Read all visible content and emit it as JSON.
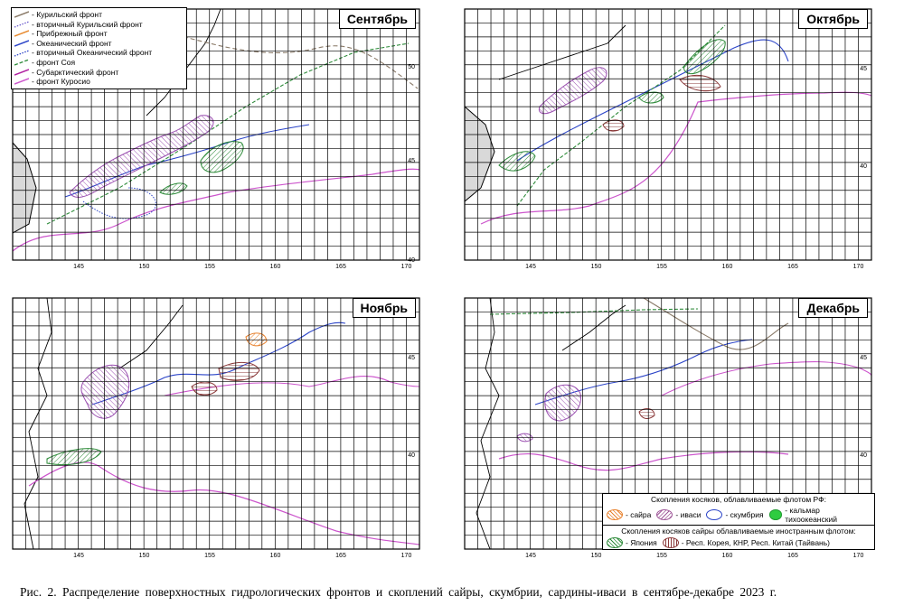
{
  "panels": [
    {
      "month": "Сентябрь",
      "lon_ticks": [
        "145",
        "150",
        "155",
        "160",
        "165",
        "170"
      ],
      "lat_ticks": [
        "50",
        "45",
        "40"
      ]
    },
    {
      "month": "Октябрь",
      "lon_ticks": [
        "145",
        "150",
        "155",
        "160",
        "165",
        "170"
      ],
      "lat_ticks": [
        "45",
        "40"
      ]
    },
    {
      "month": "Ноябрь",
      "lon_ticks": [
        "145",
        "150",
        "155",
        "160",
        "165",
        "170"
      ],
      "lat_ticks": [
        "45",
        "40"
      ]
    },
    {
      "month": "Декабрь",
      "lon_ticks": [
        "145",
        "150",
        "155",
        "160",
        "165",
        "170"
      ],
      "lat_ticks": [
        "45",
        "40"
      ]
    }
  ],
  "fronts_legend": [
    {
      "label": "- Курильский фронт",
      "color": "#8a7a68",
      "style": "solid"
    },
    {
      "label": "- вторичный Курильский фронт",
      "color": "#6a5acd",
      "style": "dotted"
    },
    {
      "label": "- Прибрежный фронт",
      "color": "#e88a2e",
      "style": "solid"
    },
    {
      "label": "- Океанический фронт",
      "color": "#2b44c8",
      "style": "solid"
    },
    {
      "label": "- вторичный Океанический фронт",
      "color": "#2b44c8",
      "style": "dotted"
    },
    {
      "label": "- фронт Соя",
      "color": "#2e8b3a",
      "style": "dashed"
    },
    {
      "label": "- Субарктический фронт",
      "color": "#b020a0",
      "style": "solid"
    },
    {
      "label": "- фронт Куросио",
      "color": "#cc55cc",
      "style": "solid"
    }
  ],
  "schools_legend": {
    "rf_title": "Скопления косяков, облавливаемые флотом РФ:",
    "rf_items": [
      {
        "label": "- сайра",
        "color": "#e8822e"
      },
      {
        "label": "- иваси",
        "color": "#a05a9a"
      },
      {
        "label": "- скумбрия",
        "color": "#2b44c8"
      },
      {
        "label": "- кальмар тихоокеанский",
        "color": "#2ecc40"
      }
    ],
    "foreign_title": "Скопления косяков сайры облавливаемые иностранным флотом:",
    "foreign_items": [
      {
        "label": "- Япония",
        "color": "#2e8b3a"
      },
      {
        "label": "- Респ. Корея, КНР, Респ. Китай (Тайвань)",
        "color": "#8b3a3a"
      }
    ]
  },
  "caption": "Рис.  2. Распределение поверхностных гидрологических фронтов и скоплений сайры, скумбрии, сардины-иваси в сентябре-декабре 2023 г.",
  "colors": {
    "grid": "#000000",
    "land": "#d9d9d9",
    "kuroshio": "#cc55cc",
    "oceanic": "#2b44c8",
    "soya": "#2e8b3a",
    "kuril": "#8a7a68",
    "saury_foreign_jp": "#2e8b3a",
    "saury_foreign_other": "#8b3a3a",
    "sardine": "#9a4fb0"
  }
}
